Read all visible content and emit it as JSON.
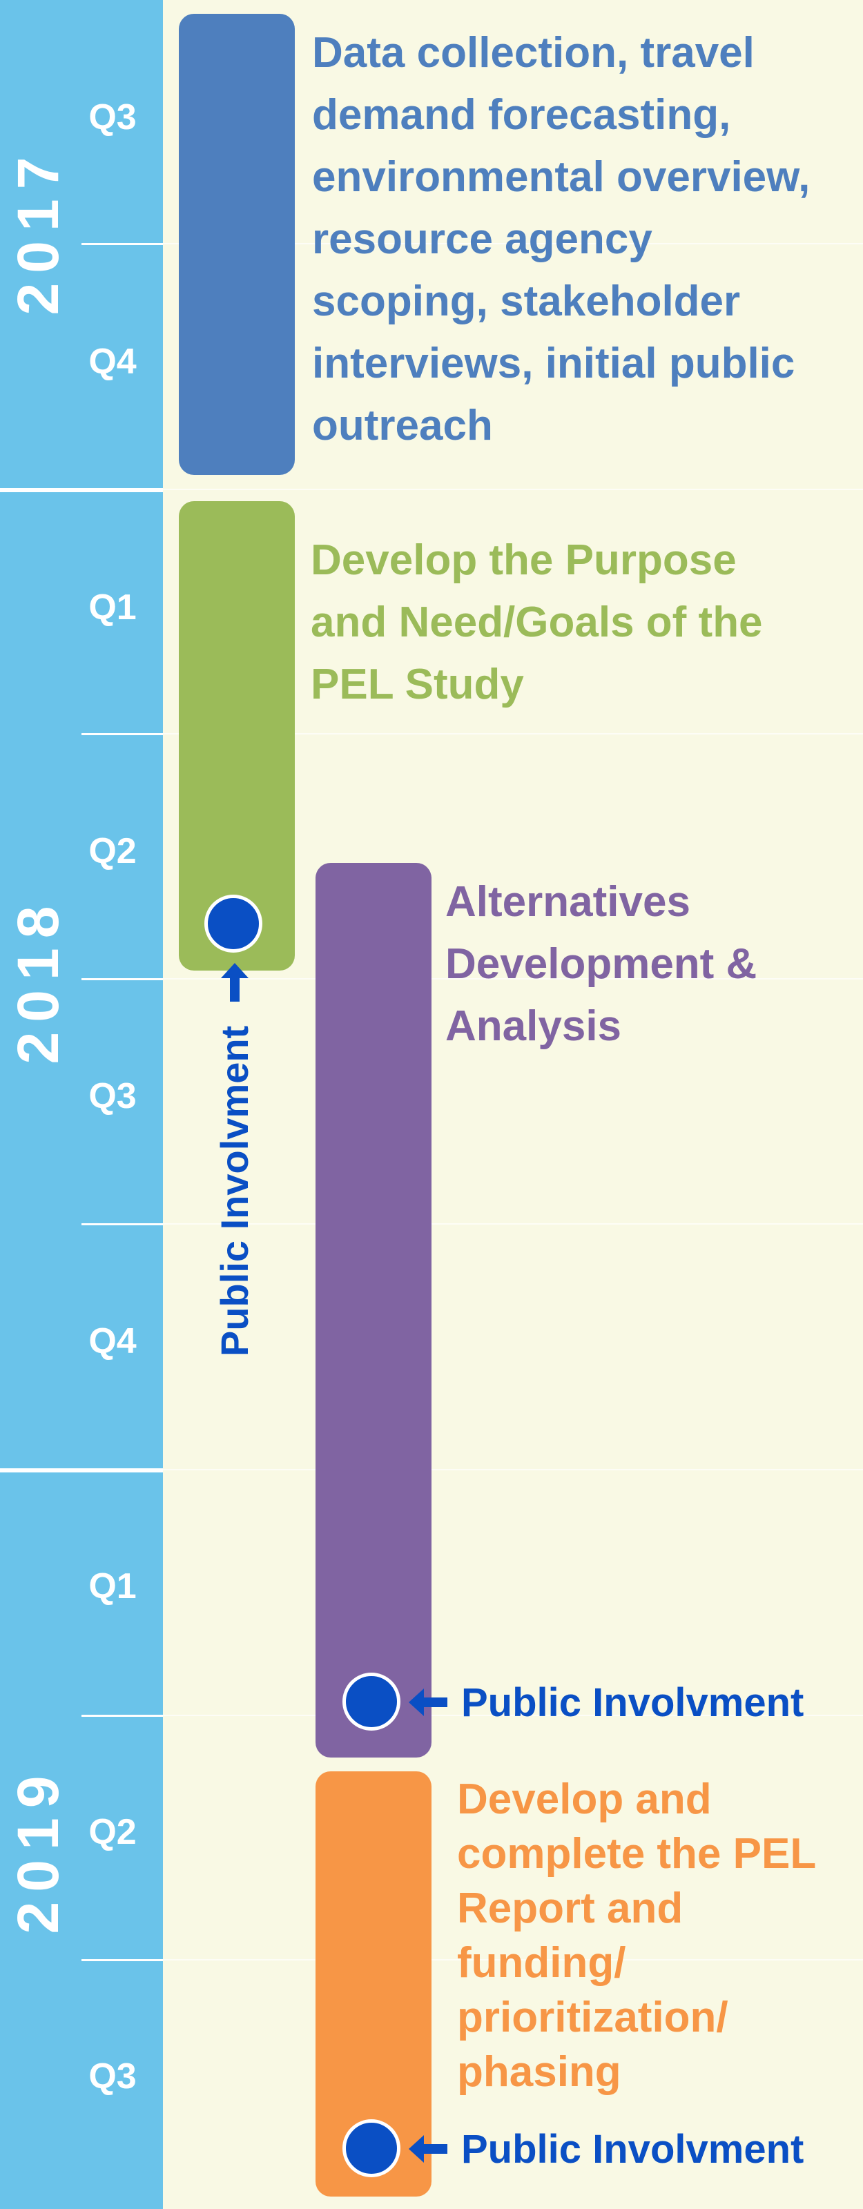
{
  "timeline": {
    "years": [
      {
        "label": "2017",
        "quarters": [
          "Q3",
          "Q4"
        ]
      },
      {
        "label": "2018",
        "quarters": [
          "Q1",
          "Q2",
          "Q3",
          "Q4"
        ]
      },
      {
        "label": "2019",
        "quarters": [
          "Q1",
          "Q2",
          "Q3"
        ]
      }
    ]
  },
  "phases": [
    {
      "text": "Data collection, travel\ndemand forecasting,\nenvironmental overview,\nresource agency\nscoping, stakeholder\ninterviews, initial public\noutreach",
      "color": "#4e7fbe"
    },
    {
      "text": "Develop the Purpose\nand Need/Goals of the\nPEL Study",
      "color": "#9bbb59"
    },
    {
      "text": "Alternatives\nDevelopment &\nAnalysis",
      "color": "#8064a2"
    },
    {
      "text": "Develop and\ncomplete the PEL\nReport and\nfunding/\nprioritization/\nphasing",
      "color": "#f79646"
    }
  ],
  "public_involvement": {
    "label": "Public Involvment",
    "color": "#0a4fc4"
  },
  "colors": {
    "sidebar": "#6ac3ea",
    "background": "#f9f9e4"
  }
}
